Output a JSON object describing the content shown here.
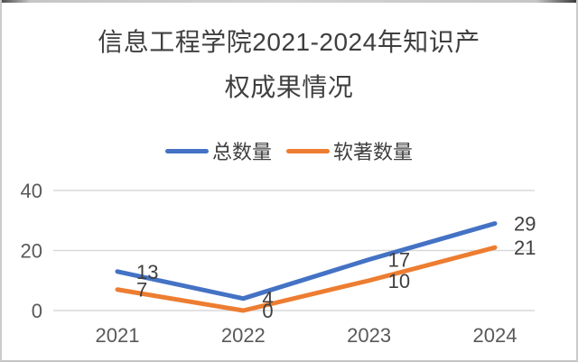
{
  "chart": {
    "title_lines": [
      "信息工程学院2021-2024年知识产",
      "权成果情况"
    ]
  },
  "colors": {
    "title_text": "#3f3f3f",
    "axis_text": "#595959",
    "data_label_text": "#3f3f3f",
    "gridline": "#d9d9d9",
    "frame_border": "#cbcbcb",
    "series_total": "#4472C4",
    "series_software": "#ED7D31"
  },
  "chart_data": {
    "type": "line",
    "title": "信息工程学院2021-2024年知识产权成果情况",
    "categories": [
      "2021",
      "2022",
      "2023",
      "2024"
    ],
    "series": [
      {
        "id": "total-count",
        "name": "总数量",
        "color": "#4472C4",
        "values": [
          13,
          4,
          17,
          29
        ]
      },
      {
        "id": "software-copyright-count",
        "name": "软著数量",
        "color": "#ED7D31",
        "values": [
          7,
          0,
          10,
          21
        ]
      }
    ],
    "ylim": [
      0,
      40
    ],
    "yticks": [
      0,
      20,
      40
    ],
    "grid": true,
    "legend_position": "top",
    "data_labels": true
  }
}
